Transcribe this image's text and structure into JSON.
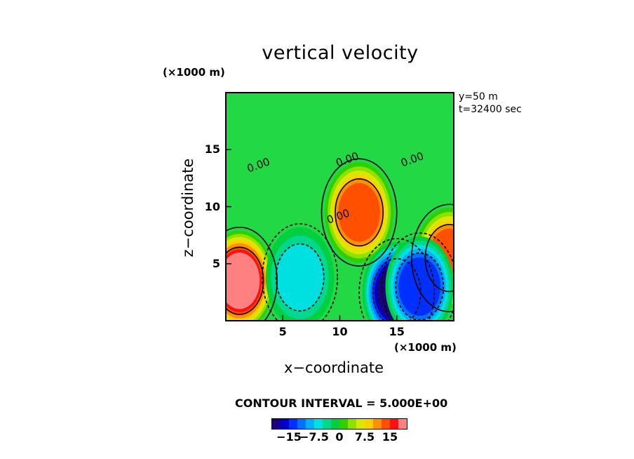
{
  "chart_data": {
    "type": "heatmap",
    "title": "vertical velocity",
    "xlabel": "x−coordinate",
    "ylabel": "z−coordinate",
    "x_units": "(×1000 m)",
    "y_units": "(×1000 m)",
    "xlim": [
      0,
      20
    ],
    "ylim": [
      0,
      20
    ],
    "x_ticks": [
      "5",
      "10",
      "15"
    ],
    "y_ticks": [
      "5",
      "10",
      "15"
    ],
    "annotations": [
      "y=50 m",
      "t=32400 sec"
    ],
    "contour_labels": [
      "0.00",
      "0.00",
      "0.00",
      "0.00"
    ],
    "contour_interval": "CONTOUR INTERVAL = 5.000E+00",
    "colorbar": {
      "labels": [
        "−15",
        "−7.5",
        "0",
        "7.5",
        "15"
      ],
      "colors": [
        "#1a0080",
        "#0000c8",
        "#0030ff",
        "#0070ff",
        "#00b0ff",
        "#00e0e0",
        "#00d890",
        "#00d040",
        "#30d000",
        "#90e000",
        "#d8e800",
        "#ffd000",
        "#ff9000",
        "#ff5000",
        "#ff1010",
        "#ff8080"
      ],
      "range": [
        -20,
        20
      ]
    },
    "features": [
      {
        "label": "updraft",
        "x": 1.2,
        "z": 3.5,
        "peak": 20
      },
      {
        "label": "updraft",
        "x": 11.7,
        "z": 9.5,
        "peak": 15
      },
      {
        "label": "updraft",
        "x": 19.6,
        "z": 5.5,
        "peak": 15
      },
      {
        "label": "downdraft",
        "x": 15.0,
        "z": 2.5,
        "peak": -20
      },
      {
        "label": "downdraft",
        "x": 17.0,
        "z": 3.0,
        "peak": -15
      },
      {
        "label": "downdraft",
        "x": 6.5,
        "z": 3.8,
        "peak": -7.5
      }
    ]
  }
}
